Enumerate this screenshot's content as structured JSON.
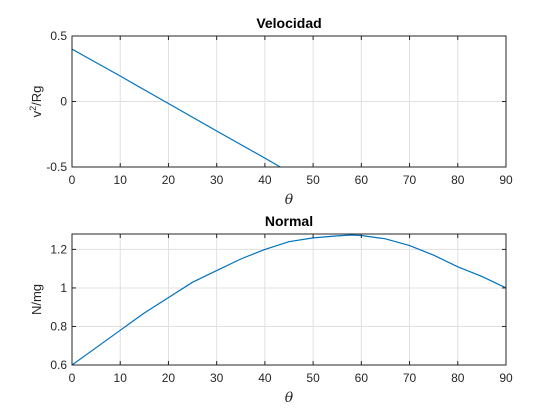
{
  "colors": {
    "series": "#0072BD",
    "axis": "#262626",
    "grid": "#e0e0e0"
  },
  "chart_data": [
    {
      "type": "line",
      "title": "Velocidad",
      "xlabel": "θ",
      "ylabel_base": "v",
      "ylabel_sup": "2",
      "ylabel_tail": "/Rg",
      "xlim": [
        0,
        90
      ],
      "ylim": [
        -0.5,
        0.5
      ],
      "xticks": [
        0,
        10,
        20,
        30,
        40,
        50,
        60,
        70,
        80,
        90
      ],
      "yticks": [
        -0.5,
        0,
        0.5
      ],
      "ytick_labels": [
        "-0.5",
        "0",
        "0.5"
      ],
      "grid": true,
      "series": [
        {
          "x": [
            0,
            10,
            20,
            30,
            40,
            43.2
          ],
          "y": [
            0.4,
            0.195,
            -0.015,
            -0.225,
            -0.432,
            -0.5
          ]
        }
      ]
    },
    {
      "type": "line",
      "title": "Normal",
      "xlabel": "θ",
      "ylabel": "N/mg",
      "xlim": [
        0,
        90
      ],
      "ylim": [
        0.6,
        1.28
      ],
      "xticks": [
        0,
        10,
        20,
        30,
        40,
        50,
        60,
        70,
        80,
        90
      ],
      "yticks": [
        0.6,
        0.8,
        1.0,
        1.2
      ],
      "ytick_labels": [
        "0.6",
        "0.8",
        "1",
        "1.2"
      ],
      "grid": true,
      "series": [
        {
          "x": [
            0,
            5,
            10,
            15,
            20,
            25,
            30,
            35,
            40,
            45,
            50,
            55,
            58,
            60,
            65,
            70,
            75,
            80,
            85,
            90
          ],
          "y": [
            0.6,
            0.69,
            0.78,
            0.87,
            0.95,
            1.03,
            1.09,
            1.15,
            1.2,
            1.24,
            1.26,
            1.27,
            1.275,
            1.272,
            1.255,
            1.22,
            1.17,
            1.11,
            1.06,
            1.0
          ]
        }
      ]
    }
  ]
}
